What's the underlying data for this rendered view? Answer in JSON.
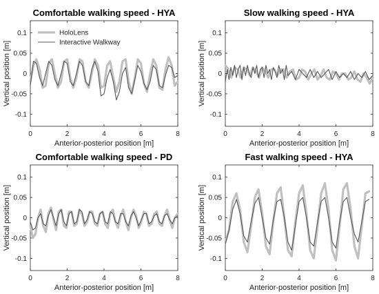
{
  "chart_data": [
    {
      "type": "line",
      "title": "Comfortable walking speed - HYA",
      "xlabel": "Anterior-posterior position [m]",
      "ylabel": "Vertical position [m]",
      "xlim": [
        0,
        8
      ],
      "ylim": [
        -0.13,
        0.13
      ],
      "xticks": [
        "0",
        "2",
        "4",
        "6",
        "8"
      ],
      "yticks": [
        "-0.1",
        "-0.05",
        "0",
        "0.05",
        "0.1"
      ],
      "legend": {
        "show": true,
        "placement": "top-left"
      },
      "series": [
        {
          "name": "HoloLens",
          "color": "#c0c0c0",
          "x": [
            0,
            0.17,
            0.33,
            0.5,
            0.67,
            0.83,
            1.0,
            1.17,
            1.33,
            1.5,
            1.67,
            1.83,
            2.0,
            2.17,
            2.33,
            2.5,
            2.67,
            2.83,
            3.0,
            3.17,
            3.33,
            3.5,
            3.67,
            3.83,
            4.0,
            4.17,
            4.33,
            4.5,
            4.67,
            4.83,
            5.0,
            5.17,
            5.33,
            5.5,
            5.67,
            5.83,
            6.0,
            6.17,
            6.33,
            6.5,
            6.67,
            6.83,
            7.0,
            7.17,
            7.33,
            7.5,
            7.67,
            7.83,
            8.0
          ],
          "y": [
            -0.02,
            0.02,
            0.035,
            0.01,
            -0.035,
            -0.03,
            0.025,
            0.035,
            0.0,
            -0.035,
            -0.02,
            0.03,
            0.035,
            -0.01,
            -0.035,
            -0.01,
            0.035,
            0.03,
            -0.02,
            -0.035,
            0.0,
            0.035,
            0.02,
            -0.035,
            -0.03,
            0.02,
            0.03,
            -0.01,
            -0.045,
            -0.02,
            0.03,
            0.035,
            -0.02,
            -0.05,
            -0.01,
            0.035,
            0.025,
            -0.025,
            -0.045,
            0.0,
            0.035,
            0.02,
            -0.035,
            -0.04,
            0.01,
            0.04,
            0.02,
            -0.03,
            -0.02
          ]
        },
        {
          "name": "Interactive Walkway",
          "color": "#555555",
          "x": [
            0,
            0.17,
            0.33,
            0.5,
            0.67,
            0.83,
            1.0,
            1.17,
            1.33,
            1.5,
            1.67,
            1.83,
            2.0,
            2.17,
            2.33,
            2.5,
            2.67,
            2.83,
            3.0,
            3.17,
            3.33,
            3.5,
            3.67,
            3.83,
            4.0,
            4.17,
            4.33,
            4.5,
            4.67,
            4.83,
            5.0,
            5.17,
            5.33,
            5.5,
            5.67,
            5.83,
            6.0,
            6.17,
            6.33,
            6.5,
            6.67,
            6.83,
            7.0,
            7.17,
            7.33,
            7.5,
            7.67,
            7.83,
            8.0
          ],
          "y": [
            -0.03,
            0.03,
            0.025,
            -0.01,
            -0.03,
            0.0,
            0.03,
            0.02,
            -0.015,
            -0.03,
            0.0,
            0.03,
            0.025,
            -0.02,
            -0.03,
            0.0,
            0.03,
            0.02,
            -0.02,
            -0.03,
            0.01,
            0.03,
            0.005,
            -0.055,
            -0.05,
            -0.01,
            0.01,
            -0.02,
            -0.065,
            -0.045,
            0.0,
            0.015,
            -0.035,
            -0.05,
            -0.015,
            0.02,
            0.005,
            -0.025,
            -0.04,
            -0.02,
            0.02,
            0.01,
            -0.03,
            -0.035,
            -0.005,
            0.02,
            0.015,
            -0.01,
            -0.005
          ]
        }
      ]
    },
    {
      "type": "line",
      "title": "Slow walking speed - HYA",
      "xlabel": "Anterior-posterior position [m]",
      "ylabel": "Vertical position [m]",
      "xlim": [
        0,
        8
      ],
      "ylim": [
        -0.13,
        0.13
      ],
      "xticks": [
        "0",
        "2",
        "4",
        "6",
        "8"
      ],
      "yticks": [
        "-0.1",
        "-0.05",
        "0",
        "0.05",
        "0.1"
      ],
      "legend": {
        "show": false
      },
      "series": [
        {
          "name": "HoloLens",
          "color": "#c0c0c0",
          "x": [
            0,
            0.17,
            0.33,
            0.5,
            0.67,
            0.83,
            1.0,
            1.17,
            1.33,
            1.5,
            1.67,
            1.83,
            2.0,
            2.17,
            2.33,
            2.5,
            2.67,
            2.83,
            3.0,
            3.17,
            3.33,
            3.5,
            3.67,
            3.83,
            4.0,
            4.17,
            4.33,
            4.5,
            4.67,
            4.83,
            5.0,
            5.17,
            5.33,
            5.5,
            5.67,
            5.83,
            6.0,
            6.17,
            6.33,
            6.5,
            6.67,
            6.83,
            7.0,
            7.17,
            7.33,
            7.5,
            7.67,
            7.83,
            8.0
          ],
          "y": [
            0.02,
            0.01,
            -0.01,
            0.015,
            0.01,
            -0.01,
            0.015,
            0.01,
            -0.005,
            0.015,
            0.005,
            -0.01,
            0.015,
            0.005,
            -0.01,
            0.01,
            0.01,
            -0.005,
            0.01,
            0.01,
            -0.01,
            0.005,
            0.01,
            -0.015,
            -0.01,
            0.01,
            0.005,
            -0.015,
            0.0,
            0.01,
            -0.015,
            -0.005,
            0.01,
            -0.01,
            -0.015,
            0.005,
            0.0,
            -0.015,
            0.0,
            0.0,
            -0.015,
            -0.01,
            0.005,
            -0.015,
            -0.02,
            0.0,
            -0.01,
            -0.025,
            -0.01
          ]
        },
        {
          "name": "Interactive Walkway",
          "color": "#555555",
          "x": [
            0,
            0.1,
            0.2,
            0.3,
            0.4,
            0.5,
            0.6,
            0.7,
            0.8,
            0.9,
            1.0,
            1.1,
            1.2,
            1.3,
            1.4,
            1.5,
            1.6,
            1.7,
            1.8,
            1.9,
            2.0,
            2.1,
            2.2,
            2.3,
            2.4,
            2.5,
            2.6,
            2.7,
            2.8,
            2.9,
            3.0,
            3.1,
            3.2,
            3.3,
            3.4,
            3.6,
            3.8,
            4.0,
            4.2,
            4.4,
            4.6,
            4.8,
            5.0,
            5.2,
            5.4,
            5.6,
            5.8,
            6.0,
            6.2,
            6.4,
            6.6,
            6.8,
            7.0,
            7.2,
            7.4,
            7.6,
            7.8,
            8.0
          ],
          "y": [
            -0.02,
            0.01,
            -0.015,
            0.015,
            -0.005,
            0.02,
            -0.01,
            0.01,
            0.02,
            -0.015,
            0.015,
            -0.005,
            0.02,
            0.0,
            -0.01,
            0.015,
            0.0,
            0.02,
            -0.01,
            0.01,
            0.015,
            -0.01,
            0.02,
            0.0,
            0.01,
            -0.015,
            0.015,
            0.005,
            -0.01,
            0.02,
            0.0,
            0.01,
            -0.015,
            0.02,
            -0.005,
            0.005,
            -0.015,
            0.01,
            0.0,
            -0.01,
            0.01,
            -0.01,
            0.005,
            -0.01,
            0.0,
            0.01,
            -0.015,
            0.005,
            -0.01,
            0.0,
            -0.01,
            0.005,
            -0.015,
            0.0,
            -0.01,
            0.005,
            -0.015,
            -0.005
          ]
        }
      ]
    },
    {
      "type": "line",
      "title": "Comfortable walking speed - PD",
      "xlabel": "Anterior-posterior position [m]",
      "ylabel": "Vertical position [m]",
      "xlim": [
        0,
        8
      ],
      "ylim": [
        -0.13,
        0.13
      ],
      "xticks": [
        "0",
        "2",
        "4",
        "6",
        "8"
      ],
      "yticks": [
        "-0.1",
        "-0.05",
        "0",
        "0.05",
        "0.1"
      ],
      "legend": {
        "show": false
      },
      "series": [
        {
          "name": "HoloLens",
          "color": "#c0c0c0",
          "x": [
            0,
            0.14,
            0.28,
            0.42,
            0.56,
            0.7,
            0.84,
            0.98,
            1.12,
            1.26,
            1.4,
            1.54,
            1.68,
            1.82,
            1.96,
            2.1,
            2.24,
            2.38,
            2.52,
            2.66,
            2.8,
            2.94,
            3.08,
            3.22,
            3.36,
            3.5,
            3.64,
            3.78,
            3.92,
            4.06,
            4.2,
            4.34,
            4.48,
            4.62,
            4.76,
            4.9,
            5.04,
            5.18,
            5.32,
            5.46,
            5.6,
            5.74,
            5.88,
            6.02,
            6.16,
            6.3,
            6.44,
            6.58,
            6.72,
            6.86,
            7.0,
            7.14,
            7.28,
            7.42,
            7.56,
            7.7,
            7.84,
            8.0
          ],
          "y": [
            -0.02,
            -0.05,
            -0.04,
            0.0,
            0.02,
            -0.02,
            -0.035,
            0.01,
            0.025,
            -0.005,
            -0.03,
            0.015,
            0.02,
            -0.02,
            -0.025,
            0.015,
            0.015,
            -0.02,
            -0.015,
            0.02,
            0.01,
            -0.02,
            -0.01,
            0.015,
            0.015,
            -0.015,
            -0.02,
            0.01,
            0.015,
            -0.015,
            -0.025,
            0.01,
            0.02,
            -0.01,
            -0.025,
            0.005,
            0.02,
            -0.01,
            -0.03,
            0.0,
            0.02,
            0.005,
            -0.025,
            -0.01,
            0.015,
            0.01,
            -0.02,
            -0.015,
            0.01,
            0.015,
            -0.015,
            -0.02,
            0.005,
            0.02,
            -0.005,
            -0.025,
            0.0,
            0.01
          ]
        },
        {
          "name": "Interactive Walkway",
          "color": "#555555",
          "x": [
            0,
            0.14,
            0.28,
            0.42,
            0.56,
            0.7,
            0.84,
            0.98,
            1.12,
            1.26,
            1.4,
            1.54,
            1.68,
            1.82,
            1.96,
            2.1,
            2.24,
            2.38,
            2.52,
            2.66,
            2.8,
            2.94,
            3.08,
            3.22,
            3.36,
            3.5,
            3.64,
            3.78,
            3.92,
            4.06,
            4.2,
            4.34,
            4.48,
            4.62,
            4.76,
            4.9,
            5.04,
            5.18,
            5.32,
            5.46,
            5.6,
            5.74,
            5.88,
            6.02,
            6.16,
            6.3,
            6.44,
            6.58,
            6.72,
            6.86,
            7.0,
            7.14,
            7.28,
            7.42,
            7.56,
            7.7,
            7.84,
            8.0
          ],
          "y": [
            -0.01,
            -0.03,
            -0.025,
            0.0,
            0.01,
            -0.015,
            -0.02,
            0.005,
            0.02,
            0.0,
            -0.02,
            0.01,
            0.02,
            -0.01,
            -0.02,
            0.01,
            0.015,
            -0.015,
            -0.01,
            0.02,
            0.015,
            -0.015,
            -0.005,
            0.015,
            0.01,
            -0.01,
            -0.015,
            0.01,
            0.015,
            -0.01,
            -0.015,
            0.015,
            0.01,
            -0.01,
            -0.015,
            0.01,
            0.01,
            -0.01,
            -0.02,
            0.005,
            0.015,
            0.0,
            -0.02,
            -0.005,
            0.01,
            0.01,
            -0.015,
            -0.01,
            0.005,
            0.01,
            -0.01,
            -0.015,
            0.005,
            0.01,
            -0.005,
            -0.015,
            0.0,
            0.005
          ]
        }
      ]
    },
    {
      "type": "line",
      "title": "Fast walking speed - HYA",
      "xlabel": "Anterior-posterior position [m]",
      "ylabel": "Vertical position [m]",
      "xlim": [
        0,
        8
      ],
      "ylim": [
        -0.13,
        0.13
      ],
      "xticks": [
        "0",
        "2",
        "4",
        "6",
        "8"
      ],
      "yticks": [
        "-0.1",
        "-0.05",
        "0",
        "0.05",
        "0.1"
      ],
      "legend": {
        "show": false
      },
      "series": [
        {
          "name": "HoloLens",
          "color": "#c0c0c0",
          "x": [
            0,
            0.2,
            0.4,
            0.6,
            0.8,
            1.0,
            1.2,
            1.4,
            1.6,
            1.8,
            2.0,
            2.2,
            2.4,
            2.6,
            2.8,
            3.0,
            3.2,
            3.4,
            3.6,
            3.8,
            4.0,
            4.2,
            4.4,
            4.6,
            4.8,
            5.0,
            5.2,
            5.4,
            5.6,
            5.8,
            6.0,
            6.2,
            6.4,
            6.6,
            6.8,
            7.0,
            7.2,
            7.4,
            7.6,
            7.8
          ],
          "y": [
            -0.06,
            -0.03,
            0.04,
            0.06,
            0.02,
            -0.06,
            -0.085,
            -0.02,
            0.05,
            0.07,
            0.01,
            -0.07,
            -0.09,
            -0.01,
            0.06,
            0.075,
            0.0,
            -0.08,
            -0.095,
            -0.01,
            0.06,
            0.08,
            0.01,
            -0.08,
            -0.1,
            -0.02,
            0.06,
            0.085,
            0.02,
            -0.08,
            -0.105,
            -0.02,
            0.07,
            0.085,
            0.02,
            -0.07,
            -0.1,
            -0.02,
            0.06,
            0.065
          ]
        },
        {
          "name": "Interactive Walkway",
          "color": "#555555",
          "x": [
            0,
            0.2,
            0.4,
            0.6,
            0.8,
            1.0,
            1.2,
            1.4,
            1.6,
            1.8,
            2.0,
            2.2,
            2.4,
            2.6,
            2.8,
            3.0,
            3.2,
            3.4,
            3.6,
            3.8,
            4.0,
            4.2,
            4.4,
            4.6,
            4.8,
            5.0,
            5.2,
            5.4,
            5.6,
            5.8,
            6.0,
            6.2,
            6.4,
            6.6,
            6.8,
            7.0,
            7.2,
            7.4,
            7.6,
            7.8
          ],
          "y": [
            -0.065,
            -0.03,
            0.02,
            0.045,
            0.01,
            -0.045,
            -0.06,
            -0.01,
            0.035,
            0.05,
            0.0,
            -0.05,
            -0.065,
            -0.005,
            0.04,
            0.045,
            0.0,
            -0.06,
            -0.08,
            -0.02,
            0.04,
            0.05,
            0.0,
            -0.06,
            -0.07,
            -0.01,
            0.04,
            0.05,
            0.0,
            -0.06,
            -0.075,
            -0.01,
            0.04,
            0.05,
            0.0,
            -0.04,
            -0.06,
            -0.01,
            0.04,
            0.045
          ]
        }
      ]
    }
  ]
}
